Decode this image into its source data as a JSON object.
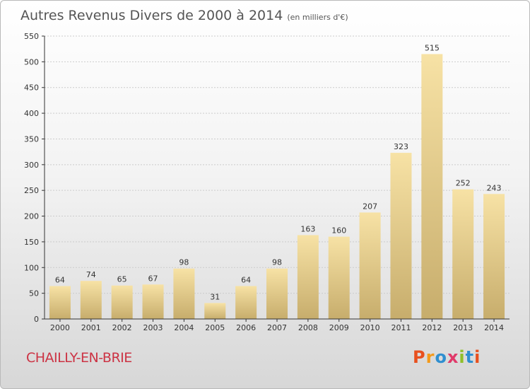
{
  "title": "Autres Revenus Divers de 2000 à 2014",
  "unit": "(en milliers d'€)",
  "city": "CHAILLY-EN-BRIE",
  "logo": {
    "letters": [
      "P",
      "r",
      "o",
      "x",
      "i",
      "t",
      "i"
    ],
    "colors": [
      "#e8501e",
      "#f39a1b",
      "#2f8fd0",
      "#e03a6a",
      "#8fbf2a",
      "#2f8fd0",
      "#e8501e"
    ]
  },
  "colors": {
    "bar_light": "#f7e2a5",
    "bar_dark": "#c7ad6c",
    "grid": "#cccccc",
    "axis": "#333333"
  },
  "chart_data": {
    "type": "bar",
    "categories": [
      "2000",
      "2001",
      "2002",
      "2003",
      "2004",
      "2005",
      "2006",
      "2007",
      "2008",
      "2009",
      "2010",
      "2011",
      "2012",
      "2013",
      "2014"
    ],
    "values": [
      64,
      74,
      65,
      67,
      98,
      31,
      64,
      98,
      163,
      160,
      207,
      323,
      515,
      252,
      243
    ],
    "ylim": [
      0,
      550
    ],
    "yticks": [
      0,
      50,
      100,
      150,
      200,
      250,
      300,
      350,
      400,
      450,
      500,
      550
    ],
    "grid": true,
    "legend": false
  }
}
